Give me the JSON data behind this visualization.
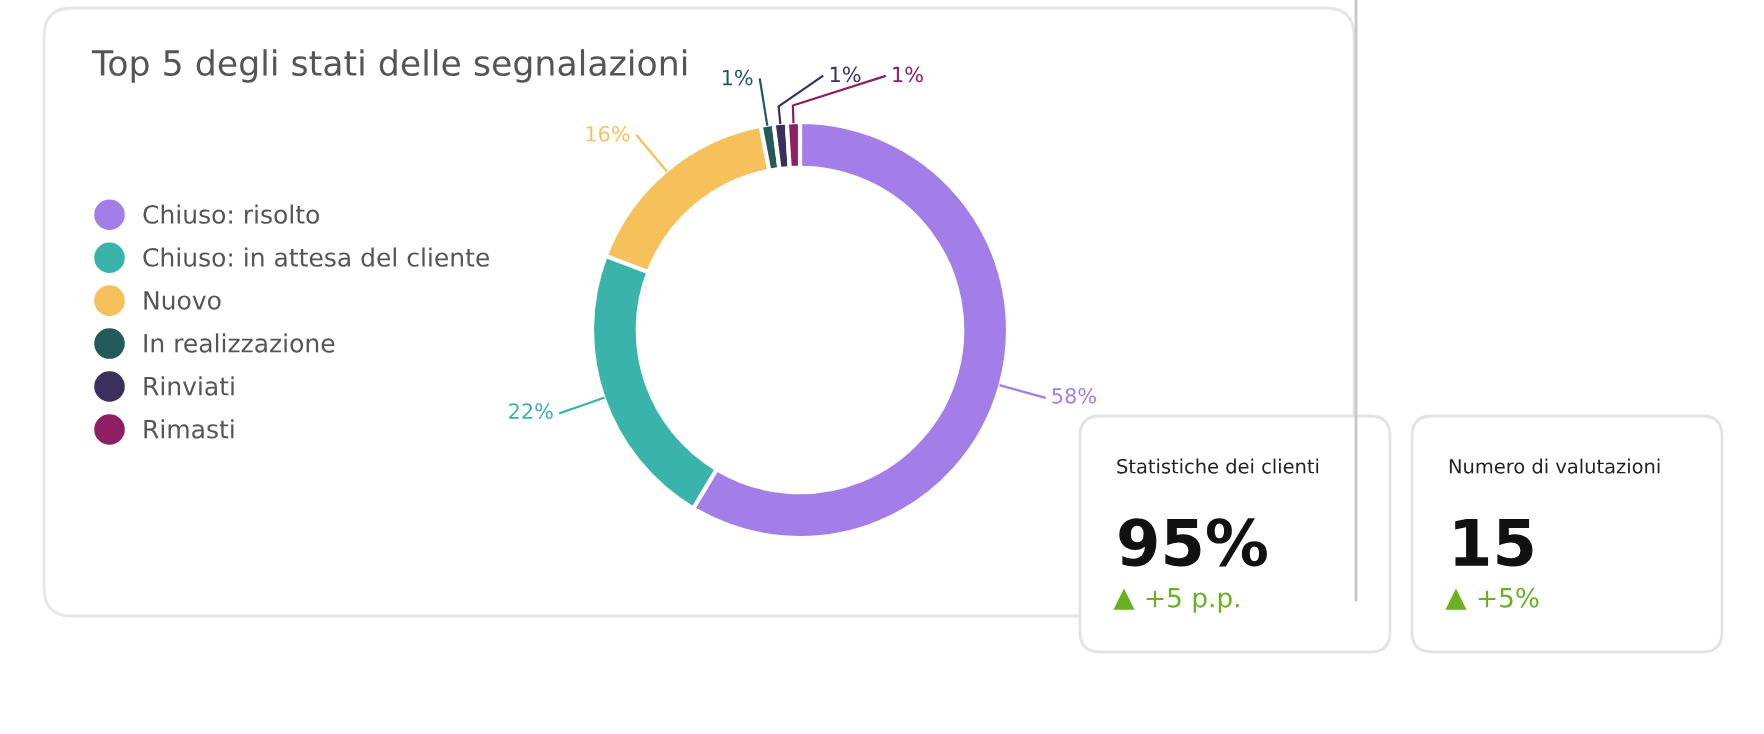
{
  "chart_data": [
    {
      "type": "donut",
      "title": "Top 5 degli stati delle segnalazioni",
      "categories": [
        "Chiuso: risolto",
        "Chiuso: in attesa del cliente",
        "Nuovo",
        "In realizzazione",
        "Rinviati",
        "Rimasti"
      ],
      "values": [
        58,
        22,
        16,
        1,
        1,
        1
      ],
      "colors": [
        "#a37de8",
        "#3ab3ab",
        "#f6c15b",
        "#235a5c",
        "#3a2f5e",
        "#8e1f62"
      ],
      "value_labels": [
        "58%",
        "22%",
        "16%",
        "1%",
        "1%",
        "1%"
      ],
      "legend": "left"
    },
    {
      "type": "other",
      "title": "Statistiche dei clienti",
      "annotations": [
        "95%",
        "+5 p.p."
      ]
    },
    {
      "type": "other",
      "title": "Numero di valutazioni",
      "annotations": [
        "15",
        "+5%"
      ]
    }
  ]
}
